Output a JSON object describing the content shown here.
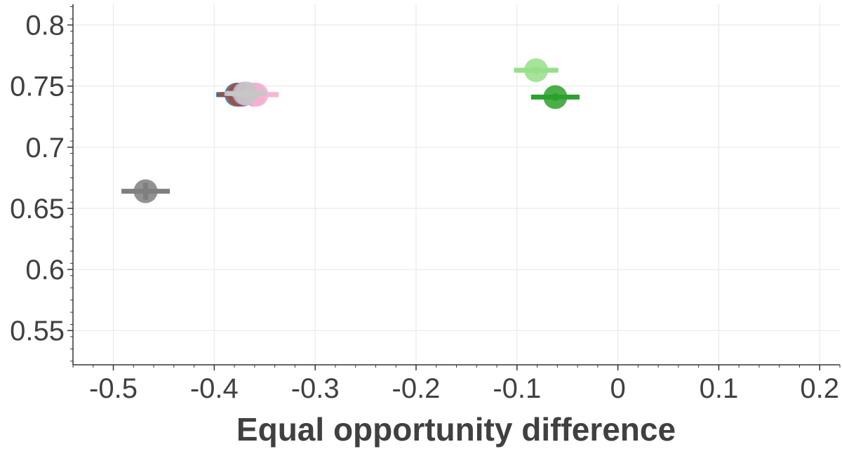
{
  "chart_data": {
    "type": "scatter",
    "title": "",
    "xlabel": "Equal opportunity difference",
    "ylabel": "",
    "xlim": [
      -0.54,
      0.22
    ],
    "ylim": [
      0.522,
      0.817
    ],
    "x_ticks": [
      -0.5,
      -0.4,
      -0.3,
      -0.2,
      -0.1,
      0,
      0.1,
      0.2
    ],
    "x_tick_labels": [
      "-0.5",
      "-0.4",
      "-0.3",
      "-0.2",
      "-0.1",
      "0",
      "0.1",
      "0.2"
    ],
    "y_ticks": [
      0.55,
      0.6,
      0.65,
      0.7,
      0.75,
      0.8
    ],
    "y_tick_labels": [
      "0.55",
      "0.6",
      "0.65",
      "0.7",
      "0.75",
      "0.8"
    ],
    "grid": true,
    "series": [
      {
        "color": "#1f77b4",
        "x": -0.378,
        "y": 0.743,
        "x_err": 0.02,
        "y_err": 0.002
      },
      {
        "color": "#ff7f0e",
        "x": -0.376,
        "y": 0.743,
        "x_err": 0.02,
        "y_err": 0.002
      },
      {
        "color": "#d62728",
        "x": -0.374,
        "y": 0.743,
        "x_err": 0.02,
        "y_err": 0.002
      },
      {
        "color": "#9467bd",
        "x": -0.372,
        "y": 0.743,
        "x_err": 0.02,
        "y_err": 0.002
      },
      {
        "color": "#8c564b",
        "x": -0.376,
        "y": 0.743,
        "x_err": 0.02,
        "y_err": 0.003
      },
      {
        "color": "#e377c2",
        "x": -0.36,
        "y": 0.743,
        "x_err": 0.022,
        "y_err": 0.003
      },
      {
        "color": "#f7b6d2",
        "x": -0.358,
        "y": 0.743,
        "x_err": 0.022,
        "y_err": 0.003
      },
      {
        "color": "#c5b0d5",
        "x": -0.37,
        "y": 0.744,
        "x_err": 0.02,
        "y_err": 0.003
      },
      {
        "color": "#c7c7c7",
        "x": -0.368,
        "y": 0.744,
        "x_err": 0.02,
        "y_err": 0.003
      },
      {
        "color": "#7f7f7f",
        "x": -0.468,
        "y": 0.664,
        "x_err": 0.024,
        "y_err": 0.007
      },
      {
        "color": "#98df8a",
        "x": -0.081,
        "y": 0.763,
        "x_err": 0.022,
        "y_err": 0.003
      },
      {
        "color": "#2ca02c",
        "x": -0.062,
        "y": 0.741,
        "x_err": 0.024,
        "y_err": 0.003
      }
    ]
  }
}
